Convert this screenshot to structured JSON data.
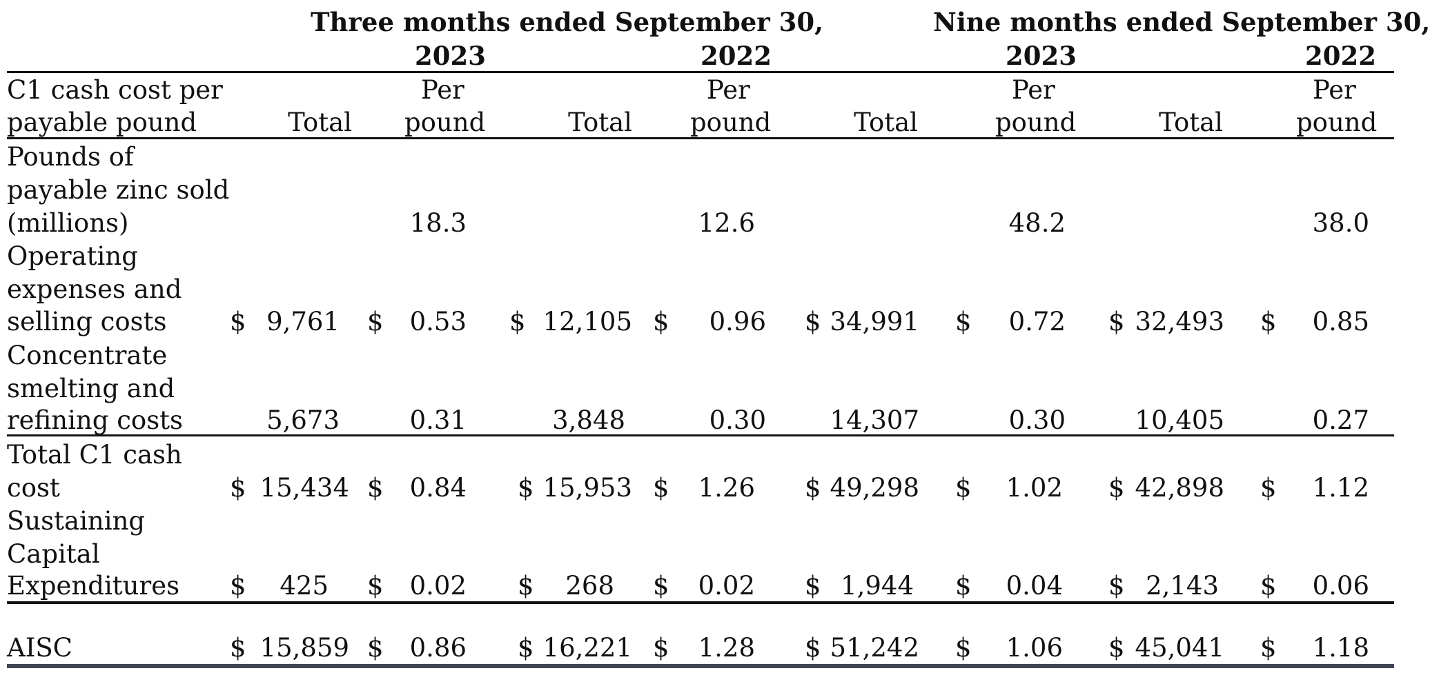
{
  "header": {
    "three_months": "Three months ended September 30,",
    "nine_months": "Nine months ended September 30,",
    "years": [
      "2023",
      "2022",
      "2023",
      "2022"
    ]
  },
  "columns": {
    "row_label": [
      "C1 cash cost per",
      "payable pound"
    ],
    "total": "Total",
    "per_pound": [
      "Per",
      "pound"
    ]
  },
  "rows": [
    {
      "label": [
        "Pounds of",
        "payable zinc sold",
        "(millions)"
      ],
      "currency": false,
      "values": [
        "",
        "18.3",
        "",
        "12.6",
        "",
        "48.2",
        "",
        "38.0"
      ]
    },
    {
      "label": [
        "Operating",
        "expenses and",
        "selling costs"
      ],
      "currency": true,
      "values": [
        "9,761",
        "0.53",
        "12,105",
        "0.96",
        "34,991",
        "0.72",
        "32,493",
        "0.85"
      ]
    },
    {
      "label": [
        "Concentrate",
        "smelting and",
        "refining costs"
      ],
      "currency": false,
      "values": [
        "5,673",
        "0.31",
        "3,848",
        "0.30",
        "14,307",
        "0.30",
        "10,405",
        "0.27"
      ]
    },
    {
      "label": [
        "Total C1 cash",
        "cost"
      ],
      "currency": true,
      "values": [
        "15,434",
        "0.84",
        "15,953",
        "1.26",
        "49,298",
        "1.02",
        "42,898",
        "1.12"
      ]
    },
    {
      "label": [
        "Sustaining",
        "Capital",
        "Expenditures"
      ],
      "currency": true,
      "values": [
        "425",
        "0.02",
        "268",
        "0.02",
        "1,944",
        "0.04",
        "2,143",
        "0.06"
      ]
    },
    {
      "label": [
        "AISC"
      ],
      "currency": true,
      "values": [
        "15,859",
        "0.86",
        "16,221",
        "1.28",
        "51,242",
        "1.06",
        "45,041",
        "1.18"
      ]
    }
  ],
  "currency_symbol": "$"
}
